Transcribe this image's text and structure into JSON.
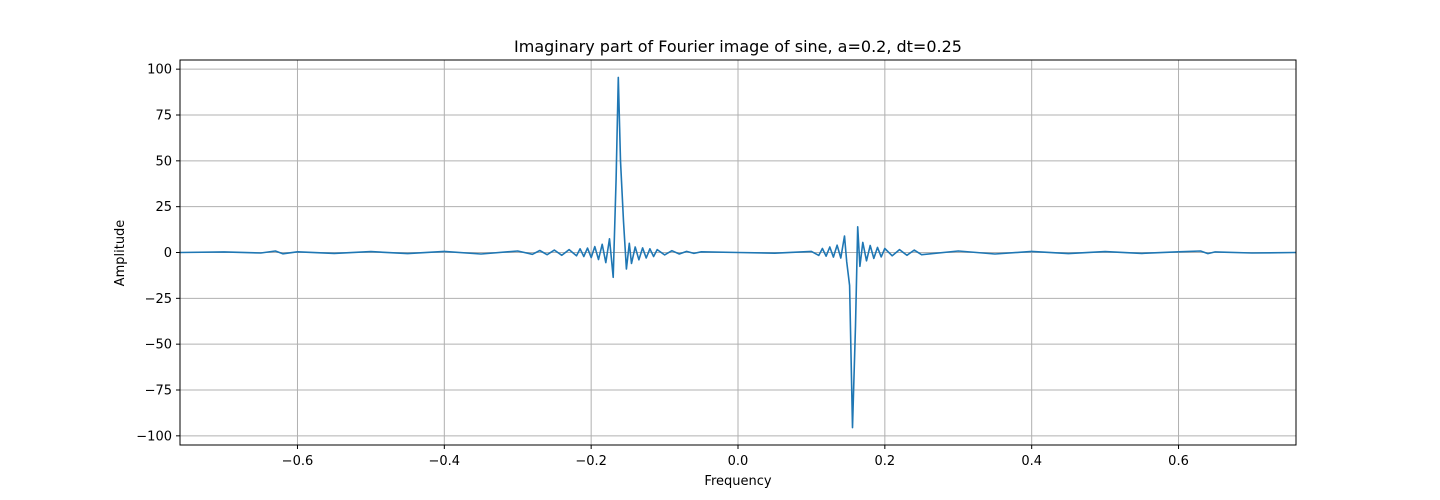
{
  "chart_data": {
    "type": "line",
    "title": "Imaginary part of Fourier image of sine, a=0.2, dt=0.25",
    "xlabel": "Frequency",
    "ylabel": "Amplitude",
    "xlim": [
      -0.76,
      0.76
    ],
    "ylim": [
      -105,
      105
    ],
    "grid": true,
    "line_color": "#1f77b4",
    "x_ticks": [
      {
        "value": -0.6,
        "label": "−0.6"
      },
      {
        "value": -0.4,
        "label": "−0.4"
      },
      {
        "value": -0.2,
        "label": "−0.2"
      },
      {
        "value": 0.0,
        "label": "0.0"
      },
      {
        "value": 0.2,
        "label": "0.2"
      },
      {
        "value": 0.4,
        "label": "0.4"
      },
      {
        "value": 0.6,
        "label": "0.6"
      }
    ],
    "y_ticks": [
      {
        "value": 100,
        "label": "100"
      },
      {
        "value": 75,
        "label": "75"
      },
      {
        "value": 50,
        "label": "50"
      },
      {
        "value": 25,
        "label": "25"
      },
      {
        "value": 0,
        "label": "0"
      },
      {
        "value": -25,
        "label": "−25"
      },
      {
        "value": -50,
        "label": "−50"
      },
      {
        "value": -75,
        "label": "−75"
      },
      {
        "value": -100,
        "label": "−100"
      }
    ],
    "series": [
      {
        "x": [
          -0.76,
          -0.7,
          -0.65,
          -0.63,
          -0.62,
          -0.6,
          -0.55,
          -0.5,
          -0.45,
          -0.4,
          -0.35,
          -0.3,
          -0.28,
          -0.27,
          -0.26,
          -0.25,
          -0.24,
          -0.23,
          -0.22,
          -0.215,
          -0.21,
          -0.205,
          -0.2,
          -0.195,
          -0.19,
          -0.185,
          -0.18,
          -0.175,
          -0.17,
          -0.166,
          -0.163,
          -0.16,
          -0.156,
          -0.152,
          -0.148,
          -0.145,
          -0.14,
          -0.135,
          -0.13,
          -0.125,
          -0.12,
          -0.115,
          -0.11,
          -0.1,
          -0.09,
          -0.08,
          -0.07,
          -0.06,
          -0.05,
          0.0,
          0.05,
          0.1,
          0.11,
          0.115,
          0.12,
          0.125,
          0.13,
          0.135,
          0.14,
          0.145,
          0.148,
          0.152,
          0.156,
          0.16,
          0.163,
          0.166,
          0.17,
          0.175,
          0.18,
          0.185,
          0.19,
          0.195,
          0.2,
          0.21,
          0.22,
          0.23,
          0.24,
          0.25,
          0.3,
          0.35,
          0.4,
          0.45,
          0.5,
          0.55,
          0.6,
          0.63,
          0.64,
          0.65,
          0.7,
          0.76
        ],
        "y": [
          0,
          0.3,
          -0.3,
          0.8,
          -0.7,
          0.4,
          -0.5,
          0.5,
          -0.6,
          0.6,
          -0.8,
          0.8,
          -1.0,
          1.1,
          -1.2,
          1.3,
          -1.5,
          1.6,
          -1.8,
          2.0,
          -2.2,
          2.4,
          -2.8,
          3.2,
          -3.8,
          4.5,
          -5.5,
          7.5,
          -13.5,
          40,
          95.5,
          50,
          17,
          -9,
          5,
          -6,
          3,
          -4,
          2.5,
          -3,
          2,
          -2.2,
          1.6,
          -1.3,
          1.0,
          -0.8,
          0.6,
          -0.5,
          0.4,
          0,
          -0.4,
          0.6,
          -1.6,
          2.2,
          -2.0,
          3.0,
          -2.5,
          4.0,
          -3.0,
          9,
          -5,
          -18,
          -95.5,
          -40,
          14,
          -7.5,
          5.5,
          -4.5,
          3.8,
          -3.2,
          2.8,
          -2.4,
          2.2,
          -1.8,
          1.6,
          -1.5,
          1.3,
          -1.2,
          0.8,
          -0.8,
          0.6,
          -0.6,
          0.5,
          -0.5,
          0.4,
          0.8,
          -0.6,
          0.3,
          -0.3,
          0
        ]
      }
    ]
  }
}
